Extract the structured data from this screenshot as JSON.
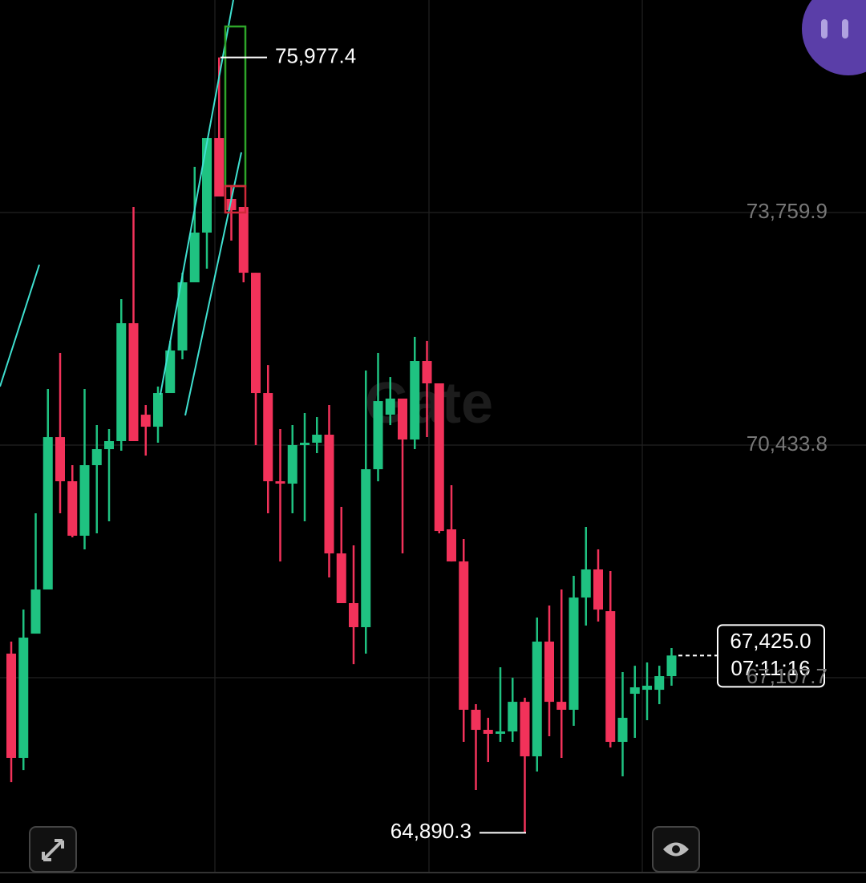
{
  "chart_data": {
    "type": "candlestick",
    "up_color": "#1fc281",
    "down_color": "#f2325a",
    "ylim": [
      64320.7,
      76799.3
    ],
    "yticks": [
      {
        "value": 73759.9,
        "label": "73,759.9"
      },
      {
        "value": 70433.8,
        "label": "70,433.8"
      },
      {
        "value": 67107.7,
        "label": "67,107.7"
      }
    ],
    "grid": true,
    "watermark": "Gate",
    "open": [
      67452,
      65961,
      67738,
      68369,
      70548,
      69917,
      69138,
      70147,
      70376,
      70491,
      72177,
      70869,
      70697,
      71179,
      71787,
      72762,
      73473,
      74826,
      73955,
      73840,
      72899,
      71179,
      69917,
      69883,
      70434,
      70468,
      70583,
      68885,
      68174,
      67830,
      70089,
      70869,
      71099,
      70514,
      71638,
      71317,
      69229,
      68770,
      66649,
      66362,
      66305,
      66339,
      66763,
      65983,
      67624,
      66763,
      66649,
      68254,
      68656,
      68059,
      66190,
      66878,
      66935,
      66935,
      67130
    ],
    "high": [
      67624,
      68082,
      69459,
      71236,
      71753,
      70147,
      71236,
      70720,
      70663,
      72521,
      73840,
      71007,
      71271,
      71925,
      72899,
      74413,
      74826,
      75977.4,
      74138,
      73840,
      72899,
      71580,
      70663,
      70720,
      70892,
      70835,
      71007,
      69550,
      69000,
      71500,
      71753,
      71408,
      71099,
      71982,
      71925,
      71317,
      69860,
      69092,
      66729,
      66534,
      67257,
      67107,
      66821,
      67968,
      68140,
      68369,
      68564,
      69264,
      68943,
      68633,
      67188,
      67279,
      67325,
      67279,
      67532
    ],
    "low": [
      65616,
      65788,
      67738,
      68369,
      69459,
      69115,
      68943,
      69172,
      69344,
      70353,
      70491,
      70284,
      70468,
      71179,
      71661,
      72762,
      72957,
      73989,
      73358,
      72762,
      70434,
      69459,
      68770,
      69459,
      69344,
      70319,
      68541,
      68174,
      67302,
      67452,
      69917,
      70720,
      68885,
      70376,
      70548,
      69172,
      68770,
      66190,
      65502,
      65903,
      66190,
      66190,
      64890.3,
      65766,
      66270,
      65961,
      66419,
      67853,
      67910,
      66110,
      65697,
      66247,
      66500,
      66729,
      66993
    ],
    "close": [
      65961,
      67681,
      68369,
      70548,
      69917,
      69138,
      70147,
      70376,
      70491,
      72177,
      70491,
      70697,
      71179,
      71787,
      72762,
      73473,
      74826,
      73989,
      73794,
      72899,
      71179,
      69917,
      69883,
      70434,
      70468,
      70583,
      68885,
      68174,
      67830,
      70089,
      71064,
      71099,
      70514,
      71638,
      71317,
      69206,
      68770,
      66649,
      66362,
      66305,
      66339,
      66763,
      65983,
      67624,
      66763,
      66649,
      68254,
      68656,
      68082,
      66190,
      66534,
      66970,
      66993,
      67130,
      67425.0
    ],
    "high_marker": {
      "value": 75977.4,
      "label": "75,977.4"
    },
    "low_marker": {
      "value": 64890.3,
      "label": "64,890.3"
    },
    "last_price": {
      "value": 67425.0,
      "label": "67,425.0",
      "countdown": "07:11:16"
    }
  }
}
